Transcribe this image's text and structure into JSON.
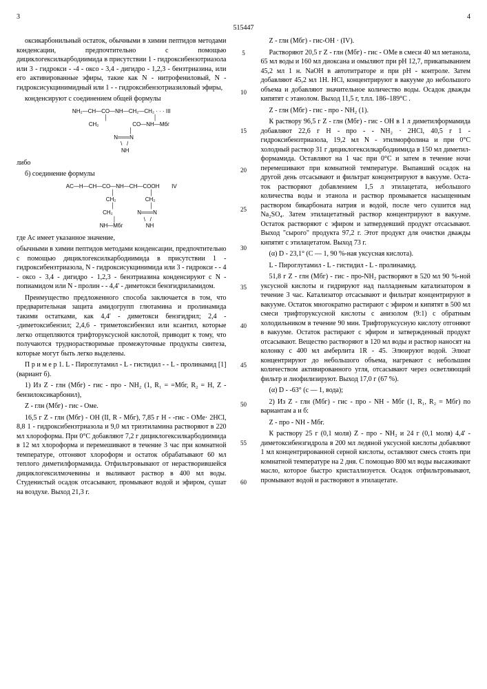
{
  "header": {
    "docnum": "515447",
    "page_left": "3",
    "page_right": "4"
  },
  "linenums": [
    "5",
    "10",
    "15",
    "20",
    "25",
    "30",
    "35",
    "40",
    "45",
    "50",
    "55",
    "60"
  ],
  "left": {
    "p1": "оксикарбонильный остаток, обычными в химии пеп­тидов методами конденсации, предпочтительно с помощью дициклогексилкарбодиимида в присут­ствии 1 - гидроксибензотриазола или 3 - гидрокси - -4 - оксо - 3,4 - дигидро - 1,2,3 - бензтриазина, или его активированные эфиры, такие как N - нитро­фениловый, N - гидроксисукцинимидный или 1 - - гидроксибензотриазиловый эфиры,",
    "p1b": "конденсируют с соединением общей формулы",
    "formula3": "NH₂—CH—CO—NH—CH₂—CH₂ · · · III\n            │                              │\n          CH₂                      CO—NH—Мбг\n            │\n   N═══N\n    \\   /\n     NH",
    "p2": "либо",
    "p3": "б) соединение формулы",
    "formula4": "AC—H—CH—CO—NH—CH—COOH        IV\n              │                       │\n            CH₂                   CH₂\n              │                       │\n           CH₂                N═══N\n              │                  \\   /\n       NH—Mбг               NH",
    "p4": "где Ac имеет указанное значение,",
    "p5": "обычными в химии пептидов методами конден­сации, предпочтительно с помощью дициклогексил­карбодиимида в присутствии 1 - гидроксибензтри­азола, N - гидроксисукцинимида или 3 - гидрокси - - 4 - оксо - 3,4 - дигидро - 1,2,3 - бензтриазина конденсируют с N - попиамидом или N - пролин - - 4,4' - диметокси бензгидриламидом.",
    "p6": "Преимущество предложенного способа за­ключается в том, что предварительная защита ами­догрупп глютамина и пролинамида такими остатка­ми, как 4,4' - диметокси бензгидрил; 2,4 - -диметоксибензил; 2,4,6 - триметоксибензил или ксантил, которые легко отщепляются трифторук­сусной кислотой, приводит к тому, что получаются труднорастворимые промежуточные продукты синтеза, которые могут быть легко выделены.",
    "p7": "П р и м е р 1. L - Пироглутамил - L - гистидил - - L - пролинамид [1] (вариант б).",
    "p8": "1) Из Z - глн (Мбг) - гис - про - NH₂ (1, R₁ = =Мбг, R₂ = H, Z - бензилоксикарбонил),",
    "p8b": "Z - глн (Мбг) - гис - Оме.",
    "p9": "16,5 г Z - глн (Мбг) - ОН (II, R - Мбг), 7,85 г H - -гис - ОМе· 2HCl, 8,8 1 - гидроксибензтриазола и 9,0 мл триэтиламина растворяют в 220 мл хлоро­форма. При 0°С добавляют 7,2 г дициклогексил­карбодиимида в 12 мл хлороформа и перемеши­вают в течение 3 час при комнатной температуре, отгоняют хлороформ и остаток обрабатывают 60 мл теплого диметилформамида. Отфильтровы­вают от нерастворившейся дициклогексилмочевины и выливают раствор в 400 мл воды. Студенистый осадок отсасывают, промывают водой и эфиром, сушат на воздухе. Выход 21,3 г."
  },
  "right": {
    "p1": "Z - глн (Мбг) - гис-OH · (IV).",
    "p2": "Растворяют 20,5 г Z - глн (Мбг) - гис - ОМе в смеси 40 мл метанола, 65 мл воды и 160 мл диок­сана и омыляют при рН 12,7, прикапыванием 45,2 мл 1 н. NaOH в автотитраторе и при рН - контроле. Затем добавляют 45,2 мл 1Н. HCl, концентрируют в вакууме до небольшого объема и добавляют зна­чительное количество воды. Осадок дважды кипя­тят с этанолом. Выход 11,5 г, т.пл. 186–189°С .",
    "p3": "Z - глн (Мбг) - гис - про - NH₂ (1).",
    "p4": "К раствору 96,5 г Z - глн (Мбг) - гис - ОН в 1 л диметилформамида добавляют 22,6 г Н - про - - NH₂ · 2HCl, 40,5 г 1 - гидроксибензтриазола, 19,2 мл N - этилморфолина и при 0°С холодный раствор 31 г дициклогексилкарбодиимида в 150 мл диметил­формамида. Оставляют на 1 час при 0°С и затем в течение ночи перемешивают при комнатной темпе­ратуре. Выпавший осадок на другой день отсасы­вают и фильтрат концентрируют в вакууме. Оста­ток растворяют добавлением 1,5 л этилацетата, не­большого количества воды и этанола и раствор промывается насыщенным раствором бикарбоната натрия и водой, после чего сушится над Na₂SO₄. Затем этилацетатный раствор концентрируют в ва­кууме. Остаток растворяют с эфиром и затвердев­ший продукт отсасывают. Выход \"сырого\" продук­та 97,2 г. Этот продукт для очистки дважды кипя­тят с этилацетатом. Выход 73 г.",
    "p5": "(α) D - 23,1° (С ― 1, 90 %-ная уксусная кисло­та).",
    "p6": "L - Пироглутамил - L - гистидил - L - пролин­амид.",
    "p7": "51,8 г Z - глн (Мбг) - гис - про-NH₂ растворяют в 520 мл 90 %-ной уксусной кислоты и гидрируют над палладиевым катализатором в течение 3 час. Катализатор отсасывают и фильтрат концентрируют в вакууме. Остаток многократно растирают с эфи­ром и кипятят в 500 мл смеси трифторуксусной кислоты с анизолом (9:1) с обратным холодильни­ком в течение 90 мин. Трифторуксусную кислоту отгоняют в вакууме. Остаток растирают с эфиром и затвержденный продукт отсасывают. Вещество ра­створяют в 120 мл воды и раствор наносят на колонку с 400 мл амберлита 1R - 45. Элюируют водой. Элюат концентрируют до небольшого объе­ма, нагревают с небольшим количеством активиро­ванного угля, отсасывают через осветляющий фильтр и лиофилизируют. Выход 17,0 г (67 %).",
    "p8": "(α) D - -63° (с ― 1, вода);",
    "p9": "2) Из Z - глн (Мбг) - гис - про - NH - Мбг (1, R₁, R₂ = Мбг) по вариантам а и б:",
    "p10": "Z - про - NH - Мбг.",
    "p11": "К раствору 25 г (0,1 моля) Z - про - NH₂ и 24 г (0,1 моля) 4,4' - диметоксибензгидрола в 200 мл ледяной уксусной кислоты добавляют 1 мл концентрированной серной кислоты, оставляют смесь стоять при комнатной температуре на 2 дня. С помощью 800 мл воды высаживают масло, которое быстро кристаллизуется. Осадок отфильтровывают, промывают водой и растворяют в этилацетате."
  }
}
